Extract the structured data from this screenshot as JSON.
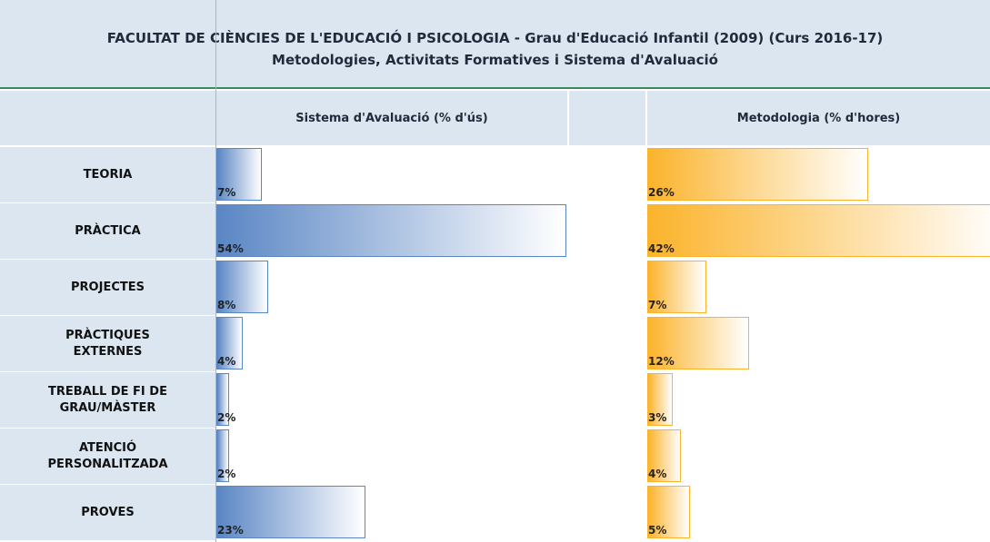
{
  "header": {
    "title": "FACULTAT DE CIÈNCIES DE L'EDUCACIÓ I PSICOLOGIA - Grau d'Educació Infantil (2009) (Curs 2016-17)",
    "subtitle": "Metodologies, Activitats Formatives i Sistema d'Avaluació"
  },
  "chart_data": [
    {
      "type": "bar",
      "orientation": "horizontal",
      "title": "Sistema d'Avaluació (% d'ús)",
      "categories": [
        "TEORIA",
        "PRÀCTICA",
        "PROJECTES",
        "PRÀCTIQUES EXTERNES",
        "TREBALL DE FI DE GRAU/MÀSTER",
        "ATENCIÓ PERSONALITZADA",
        "PROVES"
      ],
      "values": [
        7,
        54,
        8,
        4,
        2,
        2,
        23
      ],
      "value_labels": [
        "7%",
        "54%",
        "8%",
        "4%",
        "2%",
        "2%",
        "23%"
      ],
      "color": "#5a86c4"
    },
    {
      "type": "bar",
      "orientation": "horizontal",
      "title": "Metodologia (% d'hores)",
      "values": [
        26,
        42,
        7,
        12,
        3,
        4,
        5
      ],
      "value_labels": [
        "26%",
        "42%",
        "7%",
        "12%",
        "3%",
        "4%",
        "5%"
      ],
      "color": "#fbb32b"
    }
  ]
}
